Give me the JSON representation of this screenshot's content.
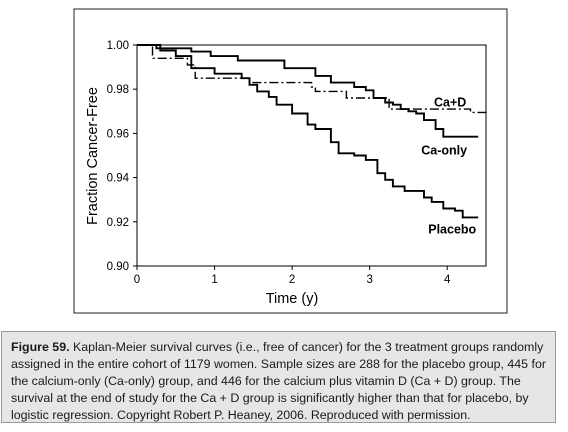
{
  "chart_data": {
    "type": "line",
    "title": "",
    "xlabel": "Time (y)",
    "ylabel": "Fraction Cancer-Free",
    "xlim": [
      0,
      4.5
    ],
    "ylim": [
      0.9,
      1.0
    ],
    "x_ticks": [
      "0",
      "1",
      "2",
      "3",
      "4"
    ],
    "x_tick_values": [
      0,
      1,
      2,
      3,
      4
    ],
    "y_ticks": [
      "1.00",
      "0.98",
      "0.96",
      "0.94",
      "0.92",
      "0.90"
    ],
    "y_tick_values": [
      1.0,
      0.98,
      0.96,
      0.94,
      0.92,
      0.9
    ],
    "grid": false,
    "legend": "inline labels at line ends",
    "step": true,
    "series": [
      {
        "name": "Ca+D",
        "style": "dash-dot",
        "x": [
          0,
          0.2,
          0.65,
          0.75,
          1.45,
          2.25,
          2.3,
          2.7,
          3.25,
          4.3,
          4.5
        ],
        "y": [
          1.0,
          0.994,
          0.991,
          0.985,
          0.983,
          0.981,
          0.979,
          0.976,
          0.971,
          0.9695,
          0.9685
        ]
      },
      {
        "name": "Ca-only",
        "style": "solid",
        "x": [
          0,
          0.25,
          0.7,
          0.95,
          1.3,
          1.9,
          2.3,
          2.5,
          2.8,
          2.95,
          3.05,
          3.2,
          3.3,
          3.4,
          3.5,
          3.6,
          3.7,
          3.85,
          3.95,
          4.4
        ],
        "y": [
          1.0,
          0.9985,
          0.997,
          0.995,
          0.993,
          0.9895,
          0.986,
          0.983,
          0.981,
          0.9795,
          0.976,
          0.974,
          0.973,
          0.971,
          0.97,
          0.969,
          0.966,
          0.962,
          0.9585,
          0.9585
        ]
      },
      {
        "name": "Placebo",
        "style": "solid",
        "x": [
          0,
          0.3,
          0.5,
          0.7,
          1.0,
          1.35,
          1.45,
          1.55,
          1.7,
          1.8,
          2.0,
          2.2,
          2.3,
          2.5,
          2.6,
          2.8,
          2.95,
          3.1,
          3.2,
          3.3,
          3.45,
          3.7,
          3.8,
          3.95,
          4.1,
          4.2,
          4.4
        ],
        "y": [
          1.0,
          0.9975,
          0.995,
          0.9895,
          0.987,
          0.985,
          0.982,
          0.979,
          0.9765,
          0.973,
          0.969,
          0.964,
          0.962,
          0.956,
          0.951,
          0.95,
          0.948,
          0.942,
          0.939,
          0.936,
          0.934,
          0.931,
          0.929,
          0.926,
          0.925,
          0.922,
          0.922
        ]
      }
    ]
  },
  "caption": {
    "label": "Figure 59.",
    "text": " Kaplan-Meier survival curves (i.e., free of cancer) for the 3 treatment groups randomly assigned in the entire cohort of 1179 women. Sample sizes are 288 for the placebo group, 445 for the calcium-only (Ca-only) group, and 446 for the calcium plus vitamin D (Ca + D) group. The survival at the end of study for the Ca + D group is significantly higher than that for placebo, by logistic regression. Copyright Robert P. Heaney, 2006. Reproduced with permission."
  }
}
